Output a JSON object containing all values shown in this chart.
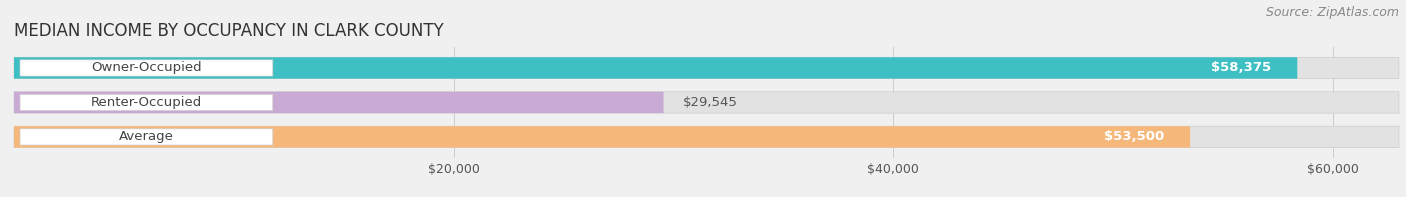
{
  "title": "MEDIAN INCOME BY OCCUPANCY IN CLARK COUNTY",
  "source": "Source: ZipAtlas.com",
  "categories": [
    "Owner-Occupied",
    "Renter-Occupied",
    "Average"
  ],
  "values": [
    58375,
    29545,
    53500
  ],
  "bar_colors": [
    "#3dbfc4",
    "#c9aad4",
    "#f5b87a"
  ],
  "value_labels": [
    "$58,375",
    "$29,545",
    "$53,500"
  ],
  "label_inside": [
    true,
    false,
    true
  ],
  "xlim": [
    0,
    63000
  ],
  "xticks": [
    20000,
    40000,
    60000
  ],
  "xticklabels": [
    "$20,000",
    "$40,000",
    "$60,000"
  ],
  "bg_color": "#f0f0f0",
  "bar_bg_color": "#e2e2e2",
  "label_bg_color": "#ffffff",
  "title_fontsize": 12,
  "source_fontsize": 9,
  "label_fontsize": 9.5,
  "tick_fontsize": 9,
  "bar_height": 0.62,
  "bar_gap": 0.38
}
